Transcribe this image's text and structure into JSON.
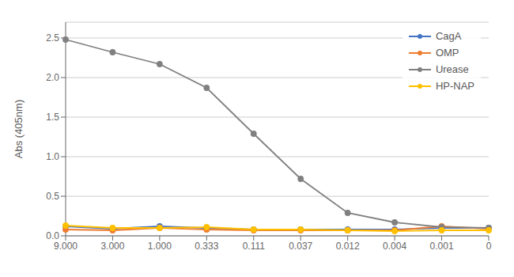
{
  "chart_data": {
    "type": "line",
    "ylabel": "Abs (405nm)",
    "categories": [
      "9.000",
      "3.000",
      "1.000",
      "0.333",
      "0.111",
      "0.037",
      "0.012",
      "0.004",
      "0.001",
      "0"
    ],
    "series": [
      {
        "name": "CagA",
        "color": "#4472C4",
        "marker": "circle",
        "values": [
          0.12,
          0.09,
          0.12,
          0.1,
          0.08,
          0.08,
          0.08,
          0.08,
          0.1,
          0.1
        ]
      },
      {
        "name": "OMP",
        "color": "#ED7D31",
        "marker": "circle",
        "values": [
          0.08,
          0.07,
          0.1,
          0.08,
          0.07,
          0.07,
          0.07,
          0.07,
          0.12,
          0.09
        ]
      },
      {
        "name": "Urease",
        "color": "#808080",
        "marker": "circle",
        "values": [
          2.48,
          2.32,
          2.17,
          1.87,
          1.29,
          0.72,
          0.29,
          0.17,
          0.11,
          0.1
        ]
      },
      {
        "name": "HP-NAP",
        "color": "#FFC000",
        "marker": "circle",
        "values": [
          0.13,
          0.1,
          0.1,
          0.11,
          0.08,
          0.08,
          0.07,
          0.06,
          0.07,
          0.07
        ]
      }
    ],
    "ylim": [
      0.0,
      2.7
    ],
    "yticks": [
      {
        "value": 0,
        "label": "0.0"
      },
      0.5,
      {
        "value": 1,
        "label": "1.0"
      },
      1.5,
      {
        "value": 2,
        "label": "2.0"
      },
      2.5
    ],
    "grid": true,
    "legend": "upper right"
  }
}
